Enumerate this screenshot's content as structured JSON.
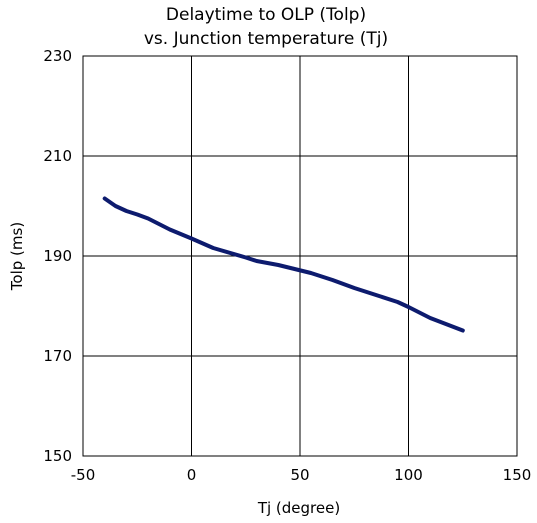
{
  "chart_data": {
    "type": "line",
    "title_line1": "Delaytime to OLP (Tolp)",
    "title_line2": "vs. Junction temperature (Tj)",
    "xlabel": "Tj (degree)",
    "ylabel": "Tolp (ms)",
    "xlim": [
      -50,
      150
    ],
    "ylim": [
      150,
      230
    ],
    "xticks": [
      -50,
      0,
      50,
      100,
      150
    ],
    "yticks": [
      150,
      170,
      190,
      210,
      230
    ],
    "xtick_labels": [
      "-50",
      "0",
      "50",
      "100",
      "150"
    ],
    "ytick_labels": [
      "150",
      "170",
      "190",
      "210",
      "230"
    ],
    "grid": true,
    "line_color": "#0d1b6e",
    "series": [
      {
        "x": [
          -40,
          -35,
          -30,
          -25,
          -20,
          -10,
          0,
          10,
          25,
          30,
          40,
          55,
          65,
          75,
          85,
          95,
          100,
          110,
          125
        ],
        "values": [
          201.5,
          200.0,
          199.0,
          198.3,
          197.5,
          195.3,
          193.5,
          191.6,
          189.7,
          189.0,
          188.2,
          186.6,
          185.2,
          183.6,
          182.2,
          180.8,
          179.8,
          177.6,
          175.1
        ]
      }
    ]
  }
}
